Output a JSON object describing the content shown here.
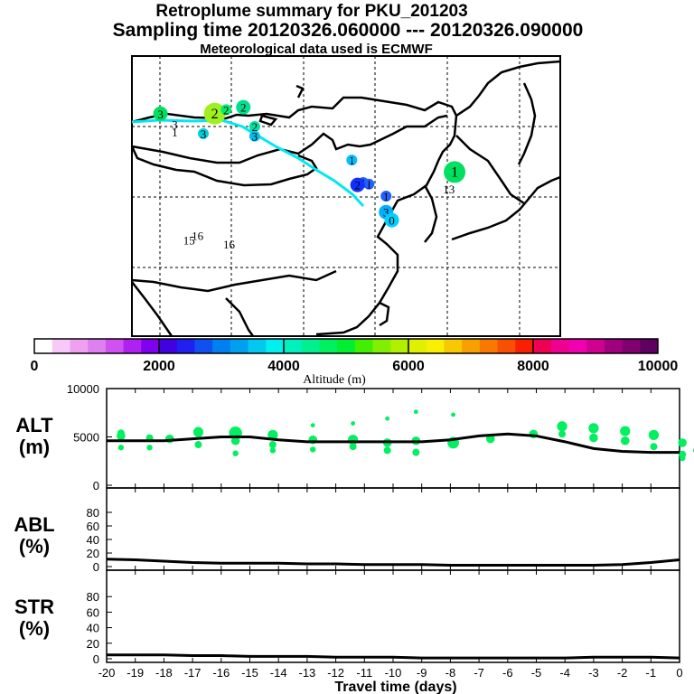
{
  "title": {
    "line1": "Retroplume summary for PKU_201203",
    "line2": "Sampling time   20120326.060000 --- 20120326.090000",
    "line3": "Meteorological data used is ECMWF"
  },
  "map": {
    "markers": [
      {
        "label": "1",
        "lon": 126.5,
        "lat": 40.5,
        "color": "#00e060",
        "size": "l"
      },
      {
        "label": "1",
        "lon": 114.5,
        "lat": 37.5,
        "color": "#2060ff",
        "size": "s"
      },
      {
        "label": "1",
        "lon": 111.5,
        "lat": 39.0,
        "color": "#2060ff",
        "size": "s"
      },
      {
        "label": "1",
        "lon": 108.5,
        "lat": 42.0,
        "color": "#00c0ff",
        "size": "s"
      },
      {
        "label": "1",
        "lon": 110.5,
        "lat": 39.2,
        "color": "#2060ff",
        "size": "s"
      },
      {
        "label": "2",
        "lon": 109.5,
        "lat": 38.9,
        "color": "#1030ff",
        "size": "m"
      },
      {
        "label": "2",
        "lon": 84.5,
        "lat": 47.8,
        "color": "#a0f020",
        "size": "l"
      },
      {
        "label": "2",
        "lon": 86.5,
        "lat": 48.3,
        "color": "#00ee70",
        "size": "s"
      },
      {
        "label": "2",
        "lon": 89.5,
        "lat": 48.6,
        "color": "#00e090",
        "size": "m"
      },
      {
        "label": "2",
        "lon": 91.5,
        "lat": 46.2,
        "color": "#00e0a0",
        "size": "s"
      },
      {
        "label": "3",
        "lon": 75.0,
        "lat": 47.8,
        "color": "#00e060",
        "size": "m"
      },
      {
        "label": "3",
        "lon": 77.5,
        "lat": 46.5,
        "color": "#00e0b0",
        "size": "n"
      },
      {
        "label": "3",
        "lon": 82.5,
        "lat": 45.3,
        "color": "#00d0e0",
        "size": "s"
      },
      {
        "label": "3",
        "lon": 91.5,
        "lat": 45.0,
        "color": "#00c0f0",
        "size": "s"
      },
      {
        "label": "3",
        "lon": 114.5,
        "lat": 35.5,
        "color": "#00b0ff",
        "size": "m"
      },
      {
        "label": "0",
        "lon": 115.5,
        "lat": 34.5,
        "color": "#00d0ff",
        "size": "m"
      },
      {
        "label": "1",
        "lon": 77.5,
        "lat": 45.5,
        "color": "#00c0ff",
        "size": "n"
      },
      {
        "label": "15",
        "lon": 80.0,
        "lat": 32.0,
        "color": "#c0f060",
        "size": "n"
      },
      {
        "label": "16",
        "lon": 81.5,
        "lat": 32.6,
        "color": "#00e0a0",
        "size": "n"
      },
      {
        "label": "16",
        "lon": 87.0,
        "lat": 31.5,
        "color": "#40e060",
        "size": "n"
      },
      {
        "label": "13",
        "lon": 125.5,
        "lat": 38.4,
        "color": "#00e060",
        "size": "n"
      }
    ]
  },
  "colorbar": {
    "tick_labels": [
      "0",
      "2000",
      "4000",
      "6000",
      "8000",
      "10000"
    ],
    "axis_label": "Altitude (m)",
    "colors": [
      "#ffffff",
      "#f8c8f8",
      "#f0a0f0",
      "#e080f0",
      "#d050f0",
      "#b020f0",
      "#8000f0",
      "#4000e0",
      "#2020f0",
      "#1050f0",
      "#0080f0",
      "#00a0f0",
      "#00c8f0",
      "#00f0f0",
      "#00f0c0",
      "#00f090",
      "#00f060",
      "#00f030",
      "#40f000",
      "#80f000",
      "#b0f000",
      "#e0f000",
      "#f8f000",
      "#f8c800",
      "#f8a000",
      "#f87800",
      "#f85000",
      "#f82000",
      "#f00050",
      "#f00090",
      "#f000b0",
      "#d00090",
      "#a00080",
      "#800070",
      "#600060"
    ]
  },
  "chart_data": [
    {
      "type": "scatter",
      "panel": "ALT",
      "ylabel": "ALT\n(m)",
      "ylabel_line1": "ALT",
      "ylabel_line2": "(m)",
      "ylim": [
        0,
        10000
      ],
      "yticks": [
        "10000",
        "5000",
        "0"
      ],
      "x": [
        -20,
        -19,
        -18,
        -17,
        -16,
        -15,
        -14,
        -13,
        -12,
        -11,
        -10,
        -9,
        -8,
        -7,
        -6,
        -5,
        -4,
        -3,
        -2,
        -1,
        0
      ],
      "mean_line": [
        4600,
        4600,
        4600,
        4800,
        5000,
        5000,
        4700,
        4500,
        4500,
        4500,
        4500,
        4500,
        4700,
        5100,
        5300,
        5100,
        4500,
        3800,
        3500,
        3400,
        3400
      ],
      "points": [
        {
          "x": -19.5,
          "y": 5100,
          "s": 3
        },
        {
          "x": -19.5,
          "y": 3900,
          "s": 2
        },
        {
          "x": -18.5,
          "y": 4900,
          "s": 2.5
        },
        {
          "x": -18.5,
          "y": 3900,
          "s": 2
        },
        {
          "x": -17.8,
          "y": 4800,
          "s": 3
        },
        {
          "x": -16.8,
          "y": 5500,
          "s": 3.5
        },
        {
          "x": -16.8,
          "y": 4200,
          "s": 2.5
        },
        {
          "x": -15.5,
          "y": 5400,
          "s": 4.5
        },
        {
          "x": -15.5,
          "y": 4600,
          "s": 3
        },
        {
          "x": -14.2,
          "y": 5200,
          "s": 3.5
        },
        {
          "x": -14.2,
          "y": 4200,
          "s": 2.5
        },
        {
          "x": -12.8,
          "y": 4700,
          "s": 3
        },
        {
          "x": -12.8,
          "y": 3700,
          "s": 2
        },
        {
          "x": -12.8,
          "y": 6200,
          "s": 1.5
        },
        {
          "x": -11.4,
          "y": 4700,
          "s": 3.5
        },
        {
          "x": -11.4,
          "y": 4000,
          "s": 2.5
        },
        {
          "x": -11.4,
          "y": 6400,
          "s": 1.5
        },
        {
          "x": -10.2,
          "y": 4400,
          "s": 3
        },
        {
          "x": -10.2,
          "y": 3600,
          "s": 2.5
        },
        {
          "x": -10.2,
          "y": 6900,
          "s": 1.5
        },
        {
          "x": -9.2,
          "y": 4600,
          "s": 3
        },
        {
          "x": -9.2,
          "y": 3400,
          "s": 2.5
        },
        {
          "x": -9.2,
          "y": 7600,
          "s": 1.5
        },
        {
          "x": -7.9,
          "y": 4400,
          "s": 4
        },
        {
          "x": -7.9,
          "y": 7300,
          "s": 1.5
        },
        {
          "x": -6.6,
          "y": 4800,
          "s": 3
        },
        {
          "x": -5.1,
          "y": 5300,
          "s": 3
        },
        {
          "x": -4.1,
          "y": 6100,
          "s": 3.5
        },
        {
          "x": -4.1,
          "y": 5300,
          "s": 2.5
        },
        {
          "x": -3.0,
          "y": 5900,
          "s": 3.5
        },
        {
          "x": -3.0,
          "y": 4900,
          "s": 3
        },
        {
          "x": -1.9,
          "y": 5600,
          "s": 3.5
        },
        {
          "x": -1.9,
          "y": 4600,
          "s": 3
        },
        {
          "x": -0.9,
          "y": 5200,
          "s": 3.5
        },
        {
          "x": -0.9,
          "y": 4000,
          "s": 2.5
        },
        {
          "x": 0.1,
          "y": 4400,
          "s": 3
        },
        {
          "x": 0.1,
          "y": 3200,
          "s": 2.5
        },
        {
          "x": 0.1,
          "y": 2800,
          "s": 2
        },
        {
          "x": 0.6,
          "y": 3600,
          "s": 2.5
        },
        {
          "x": -19.5,
          "y": 5400,
          "s": 2.5
        },
        {
          "x": -15.5,
          "y": 3300,
          "s": 2
        },
        {
          "x": -14.2,
          "y": 3600,
          "s": 2
        }
      ]
    },
    {
      "type": "line",
      "panel": "ABL",
      "ylabel_line1": "ABL",
      "ylabel_line2": "(%)",
      "ylim": [
        0,
        100
      ],
      "yticks": [
        "80",
        "60",
        "40",
        "20",
        "0"
      ],
      "x": [
        -20,
        -19,
        -18,
        -17,
        -16,
        -15,
        -14,
        -13,
        -12,
        -11,
        -10,
        -9,
        -8,
        -7,
        -6,
        -5,
        -4,
        -3,
        -2,
        -1,
        0
      ],
      "values": [
        11,
        10,
        8,
        6,
        5,
        5,
        5,
        4,
        4,
        3,
        3,
        3,
        2,
        2,
        2,
        2,
        2,
        2,
        3,
        6,
        10
      ]
    },
    {
      "type": "line",
      "panel": "STR",
      "ylabel_line1": "STR",
      "ylabel_line2": "(%)",
      "ylim": [
        0,
        100
      ],
      "yticks": [
        "80",
        "60",
        "40",
        "20",
        "0"
      ],
      "xlabel": "Travel time (days)",
      "xticks": [
        "-20",
        "-19",
        "-18",
        "-17",
        "-16",
        "-15",
        "-14",
        "-13",
        "-12",
        "-11",
        "-10",
        "-9",
        "-8",
        "-7",
        "-6",
        "-5",
        "-4",
        "-3",
        "-2",
        "-1",
        "0"
      ],
      "x": [
        -20,
        -19,
        -18,
        -17,
        -16,
        -15,
        -14,
        -13,
        -12,
        -11,
        -10,
        -9,
        -8,
        -7,
        -6,
        -5,
        -4,
        -3,
        -2,
        -1,
        0
      ],
      "values": [
        5,
        5,
        5,
        4,
        4,
        3,
        3,
        3,
        2,
        2,
        2,
        1,
        1,
        1,
        1,
        1,
        1,
        2,
        2,
        2,
        1
      ]
    }
  ]
}
